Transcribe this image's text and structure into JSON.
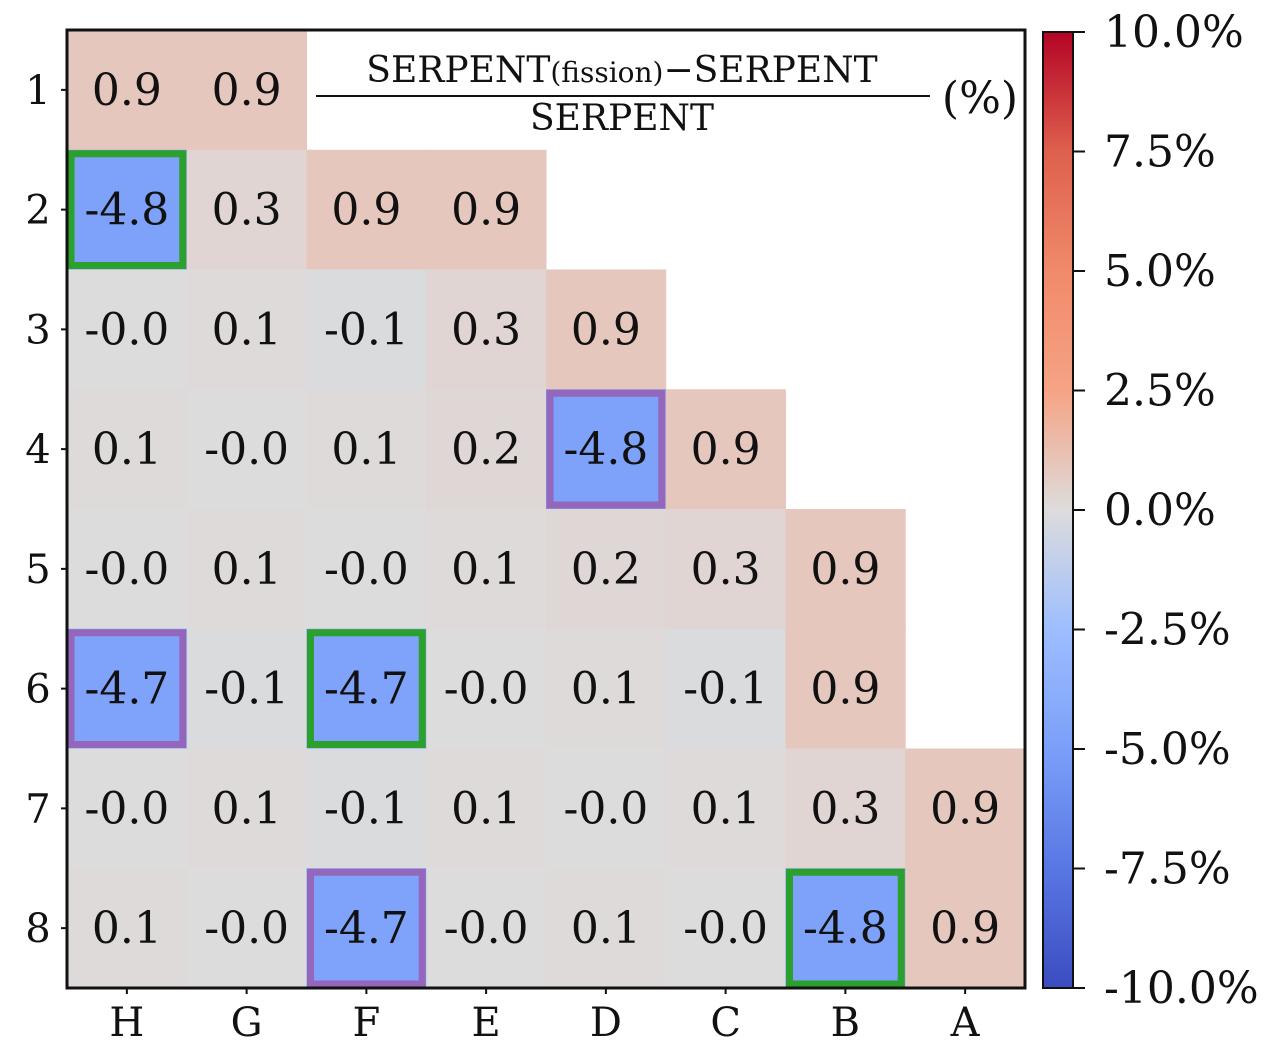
{
  "chart_data": {
    "type": "heatmap",
    "title": {
      "numerator_prefix": "SERPENT",
      "numerator_sub": "(fission)",
      "numerator_suffix": "−SERPENT",
      "denominator": "SERPENT",
      "unit": "(%)"
    },
    "columns": [
      "H",
      "G",
      "F",
      "E",
      "D",
      "C",
      "B",
      "A"
    ],
    "rows": [
      "1",
      "2",
      "3",
      "4",
      "5",
      "6",
      "7",
      "8"
    ],
    "values": [
      [
        0.9,
        0.9,
        null,
        null,
        null,
        null,
        null,
        null
      ],
      [
        -4.8,
        0.3,
        0.9,
        0.9,
        null,
        null,
        null,
        null
      ],
      [
        -0.0,
        0.1,
        -0.1,
        0.3,
        0.9,
        null,
        null,
        null
      ],
      [
        0.1,
        -0.0,
        0.1,
        0.2,
        -4.8,
        0.9,
        null,
        null
      ],
      [
        -0.0,
        0.1,
        -0.0,
        0.1,
        0.2,
        0.3,
        0.9,
        null
      ],
      [
        -4.7,
        -0.1,
        -4.7,
        -0.0,
        0.1,
        -0.1,
        0.9,
        null
      ],
      [
        -0.0,
        0.1,
        -0.1,
        0.1,
        -0.0,
        0.1,
        0.3,
        0.9
      ],
      [
        0.1,
        -0.0,
        -4.7,
        -0.0,
        0.1,
        -0.0,
        -4.8,
        0.9
      ]
    ],
    "labels": [
      [
        "0.9",
        "0.9",
        "",
        "",
        "",
        "",
        "",
        ""
      ],
      [
        "-4.8",
        "0.3",
        "0.9",
        "0.9",
        "",
        "",
        "",
        ""
      ],
      [
        "-0.0",
        "0.1",
        "-0.1",
        "0.3",
        "0.9",
        "",
        "",
        ""
      ],
      [
        "0.1",
        "-0.0",
        "0.1",
        "0.2",
        "-4.8",
        "0.9",
        "",
        ""
      ],
      [
        "-0.0",
        "0.1",
        "-0.0",
        "0.1",
        "0.2",
        "0.3",
        "0.9",
        ""
      ],
      [
        "-4.7",
        "-0.1",
        "-4.7",
        "-0.0",
        "0.1",
        "-0.1",
        "0.9",
        ""
      ],
      [
        "-0.0",
        "0.1",
        "-0.1",
        "0.1",
        "-0.0",
        "0.1",
        "0.3",
        "0.9"
      ],
      [
        "0.1",
        "-0.0",
        "-4.7",
        "-0.0",
        "0.1",
        "-0.0",
        "-4.8",
        "0.9"
      ]
    ],
    "highlights": [
      {
        "row": "2",
        "col": "H",
        "color": "#2ca02c"
      },
      {
        "row": "6",
        "col": "F",
        "color": "#2ca02c"
      },
      {
        "row": "8",
        "col": "B",
        "color": "#2ca02c"
      },
      {
        "row": "4",
        "col": "D",
        "color": "#9467bd"
      },
      {
        "row": "6",
        "col": "H",
        "color": "#9467bd"
      },
      {
        "row": "8",
        "col": "F",
        "color": "#9467bd"
      }
    ],
    "colorbar": {
      "colormap": "coolwarm",
      "range": [
        -10,
        10
      ],
      "ticks": [
        10,
        7.5,
        5,
        2.5,
        0,
        -2.5,
        -5,
        -7.5,
        -10
      ],
      "tick_labels": [
        "10.0%",
        "7.5%",
        "5.0%",
        "2.5%",
        "0.0%",
        "-2.5%",
        "-5.0%",
        "-7.5%",
        "-10.0%"
      ]
    },
    "grid": false,
    "legend": "none"
  }
}
